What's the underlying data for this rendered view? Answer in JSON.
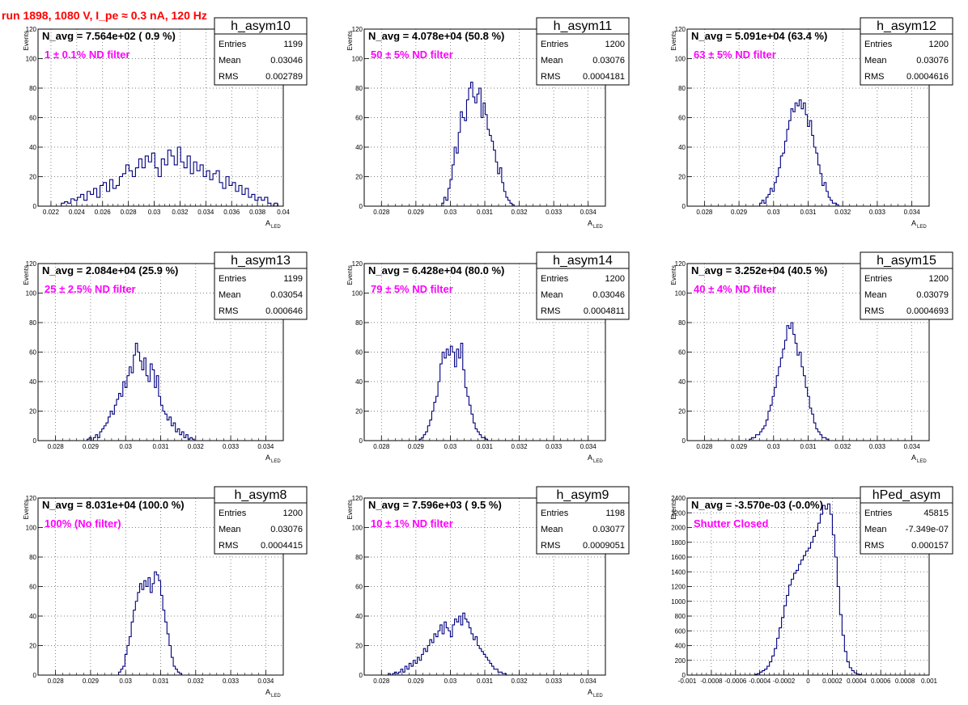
{
  "run_title": "run 1898,  1080 V, I_pe ≈ 0.3 nA, 120 Hz",
  "colors": {
    "hist": "#000080",
    "annotation": "#ff00ff",
    "title": "#ff0000",
    "grid": "#000000"
  },
  "chart_data": [
    {
      "type": "bar",
      "name": "h_asym10",
      "stats": {
        "Entries": "1199",
        "Mean": "0.03046",
        "RMS": "0.002789"
      },
      "navg": "N_avg = 7.564e+02 ( 0.9 %)",
      "filter": "1 ± 0.1% ND filter",
      "xlabel": "A",
      "xlabel_sub": "LED",
      "ylabel": "Events",
      "xlim": [
        0.021,
        0.04
      ],
      "ylim": [
        0,
        120
      ],
      "xticks": [
        0.022,
        0.024,
        0.026,
        0.028,
        0.03,
        0.032,
        0.034,
        0.036,
        0.038,
        0.04
      ],
      "xtick_labels": [
        "0.022",
        "0.024",
        "0.026",
        "0.028",
        "0.03",
        "0.032",
        "0.034",
        "0.036",
        "0.038",
        "0.04"
      ],
      "yticks": [
        0,
        20,
        40,
        60,
        80,
        100,
        120
      ],
      "ytick_labels": [
        "0",
        "20",
        "40",
        "60",
        "80",
        "100",
        "120"
      ],
      "bin_start": 0.0228,
      "bin_width": 0.00025,
      "values": [
        2,
        3,
        2,
        5,
        4,
        6,
        8,
        4,
        10,
        8,
        12,
        6,
        14,
        16,
        10,
        18,
        12,
        14,
        20,
        22,
        28,
        24,
        20,
        26,
        32,
        26,
        34,
        30,
        36,
        26,
        20,
        32,
        28,
        38,
        34,
        28,
        40,
        30,
        26,
        34,
        22,
        30,
        24,
        28,
        20,
        24,
        18,
        22,
        24,
        16,
        12,
        20,
        14,
        16,
        10,
        14,
        8,
        12,
        6,
        8,
        4,
        6,
        4,
        6,
        2,
        0,
        2
      ]
    },
    {
      "type": "bar",
      "name": "h_asym11",
      "stats": {
        "Entries": "1200",
        "Mean": "0.03076",
        "RMS": "0.0004181"
      },
      "navg": "N_avg = 4.078e+04 (50.8 %)",
      "filter": "50 ± 5% ND filter",
      "xlabel": "A",
      "xlabel_sub": "LED",
      "ylabel": "Events",
      "xlim": [
        0.0275,
        0.0345
      ],
      "ylim": [
        0,
        120
      ],
      "xticks": [
        0.028,
        0.029,
        0.03,
        0.031,
        0.032,
        0.033,
        0.034
      ],
      "xtick_labels": [
        "0.028",
        "0.029",
        "0.03",
        "0.031",
        "0.032",
        "0.033",
        "0.034"
      ],
      "yticks": [
        0,
        20,
        40,
        60,
        80,
        100,
        120
      ],
      "ytick_labels": [
        "0",
        "20",
        "40",
        "60",
        "80",
        "100",
        "120"
      ],
      "bin_start": 0.02975,
      "bin_width": 6e-05,
      "values": [
        2,
        6,
        4,
        12,
        18,
        28,
        40,
        36,
        50,
        64,
        60,
        58,
        72,
        80,
        84,
        74,
        70,
        76,
        80,
        60,
        70,
        62,
        52,
        48,
        44,
        38,
        30,
        22,
        26,
        16,
        10,
        6,
        4,
        2,
        1
      ]
    },
    {
      "type": "bar",
      "name": "h_asym12",
      "stats": {
        "Entries": "1200",
        "Mean": "0.03076",
        "RMS": "0.0004616"
      },
      "navg": "N_avg = 5.091e+04 (63.4 %)",
      "filter": "63 ± 5% ND filter",
      "xlabel": "A",
      "xlabel_sub": "LED",
      "ylabel": "Events",
      "xlim": [
        0.0275,
        0.0345
      ],
      "ylim": [
        0,
        120
      ],
      "xticks": [
        0.028,
        0.029,
        0.03,
        0.031,
        0.032,
        0.033,
        0.034
      ],
      "xtick_labels": [
        "0.028",
        "0.029",
        "0.03",
        "0.031",
        "0.032",
        "0.033",
        "0.034"
      ],
      "yticks": [
        0,
        20,
        40,
        60,
        80,
        100,
        120
      ],
      "ytick_labels": [
        "0",
        "20",
        "40",
        "60",
        "80",
        "100",
        "120"
      ],
      "bin_start": 0.0296,
      "bin_width": 6e-05,
      "values": [
        2,
        4,
        2,
        6,
        8,
        12,
        10,
        16,
        20,
        26,
        34,
        36,
        44,
        52,
        58,
        66,
        64,
        70,
        68,
        72,
        66,
        70,
        62,
        54,
        58,
        48,
        40,
        36,
        28,
        22,
        14,
        16,
        10,
        6,
        4,
        2,
        2,
        1
      ]
    },
    {
      "type": "bar",
      "name": "h_asym13",
      "stats": {
        "Entries": "1199",
        "Mean": "0.03054",
        "RMS": "0.000646"
      },
      "navg": "N_avg = 2.084e+04 (25.9 %)",
      "filter": "25 ± 2.5% ND filter",
      "xlabel": "A",
      "xlabel_sub": "LED",
      "ylabel": "Events",
      "xlim": [
        0.0275,
        0.0345
      ],
      "ylim": [
        0,
        120
      ],
      "xticks": [
        0.028,
        0.029,
        0.03,
        0.031,
        0.032,
        0.033,
        0.034
      ],
      "xtick_labels": [
        "0.028",
        "0.029",
        "0.03",
        "0.031",
        "0.032",
        "0.033",
        "0.034"
      ],
      "yticks": [
        0,
        20,
        40,
        60,
        80,
        100,
        120
      ],
      "ytick_labels": [
        "0",
        "20",
        "40",
        "60",
        "80",
        "100",
        "120"
      ],
      "bin_start": 0.0289,
      "bin_width": 6e-05,
      "values": [
        1,
        2,
        0,
        2,
        4,
        2,
        6,
        8,
        10,
        12,
        16,
        20,
        18,
        24,
        28,
        32,
        30,
        40,
        36,
        44,
        50,
        46,
        58,
        66,
        60,
        54,
        48,
        56,
        44,
        40,
        52,
        48,
        36,
        44,
        30,
        24,
        20,
        18,
        14,
        16,
        10,
        12,
        6,
        8,
        4,
        6,
        2,
        4,
        1,
        2,
        1
      ]
    },
    {
      "type": "bar",
      "name": "h_asym14",
      "stats": {
        "Entries": "1200",
        "Mean": "0.03046",
        "RMS": "0.0004811"
      },
      "navg": "N_avg = 6.428e+04 (80.0 %)",
      "filter": "79 ± 5% ND filter",
      "xlabel": "A",
      "xlabel_sub": "LED",
      "ylabel": "Events",
      "xlim": [
        0.0275,
        0.0345
      ],
      "ylim": [
        0,
        120
      ],
      "xticks": [
        0.028,
        0.029,
        0.03,
        0.031,
        0.032,
        0.033,
        0.034
      ],
      "xtick_labels": [
        "0.028",
        "0.029",
        "0.03",
        "0.031",
        "0.032",
        "0.033",
        "0.034"
      ],
      "yticks": [
        0,
        20,
        40,
        60,
        80,
        100,
        120
      ],
      "ytick_labels": [
        "0",
        "20",
        "40",
        "60",
        "80",
        "100",
        "120"
      ],
      "bin_start": 0.0291,
      "bin_width": 6e-05,
      "values": [
        1,
        2,
        4,
        6,
        10,
        14,
        20,
        26,
        30,
        40,
        52,
        60,
        56,
        62,
        58,
        64,
        60,
        50,
        62,
        56,
        66,
        48,
        36,
        30,
        24,
        18,
        12,
        8,
        6,
        4,
        2,
        2,
        1
      ]
    },
    {
      "type": "bar",
      "name": "h_asym15",
      "stats": {
        "Entries": "1200",
        "Mean": "0.03079",
        "RMS": "0.0004693"
      },
      "navg": "N_avg = 3.252e+04 (40.5 %)",
      "filter": "40 ± 4% ND filter",
      "xlabel": "A",
      "xlabel_sub": "LED",
      "ylabel": "Events",
      "xlim": [
        0.0275,
        0.0345
      ],
      "ylim": [
        0,
        120
      ],
      "xticks": [
        0.028,
        0.029,
        0.03,
        0.031,
        0.032,
        0.033,
        0.034
      ],
      "xtick_labels": [
        "0.028",
        "0.029",
        "0.03",
        "0.031",
        "0.032",
        "0.033",
        "0.034"
      ],
      "yticks": [
        0,
        20,
        40,
        60,
        80,
        100,
        120
      ],
      "ytick_labels": [
        "0",
        "20",
        "40",
        "60",
        "80",
        "100",
        "120"
      ],
      "bin_start": 0.0293,
      "bin_width": 6e-05,
      "values": [
        1,
        2,
        2,
        4,
        4,
        6,
        8,
        10,
        14,
        20,
        24,
        30,
        36,
        44,
        50,
        56,
        62,
        68,
        78,
        76,
        80,
        72,
        66,
        58,
        60,
        50,
        44,
        36,
        30,
        22,
        18,
        12,
        8,
        6,
        4,
        2,
        2,
        1
      ]
    },
    {
      "type": "bar",
      "name": "h_asym8",
      "stats": {
        "Entries": "1200",
        "Mean": "0.03076",
        "RMS": "0.0004415"
      },
      "navg": "N_avg = 8.031e+04 (100.0 %)",
      "filter": "100% (No filter)",
      "xlabel": "A",
      "xlabel_sub": "LED",
      "ylabel": "Events",
      "xlim": [
        0.0275,
        0.0345
      ],
      "ylim": [
        0,
        120
      ],
      "xticks": [
        0.028,
        0.029,
        0.03,
        0.031,
        0.032,
        0.033,
        0.034
      ],
      "xtick_labels": [
        "0.028",
        "0.029",
        "0.03",
        "0.031",
        "0.032",
        "0.033",
        "0.034"
      ],
      "yticks": [
        0,
        20,
        40,
        60,
        80,
        100,
        120
      ],
      "ytick_labels": [
        "0",
        "20",
        "40",
        "60",
        "80",
        "100",
        "120"
      ],
      "bin_start": 0.0298,
      "bin_width": 6e-05,
      "values": [
        2,
        4,
        6,
        14,
        20,
        26,
        36,
        44,
        50,
        56,
        62,
        58,
        64,
        60,
        66,
        56,
        62,
        70,
        68,
        64,
        54,
        44,
        36,
        28,
        20,
        12,
        6,
        4,
        2,
        1
      ]
    },
    {
      "type": "bar",
      "name": "h_asym9",
      "stats": {
        "Entries": "1198",
        "Mean": "0.03077",
        "RMS": "0.0009051"
      },
      "navg": "N_avg = 7.596e+03 ( 9.5 %)",
      "filter": "10 ± 1% ND filter",
      "xlabel": "A",
      "xlabel_sub": "LED",
      "ylabel": "Events",
      "xlim": [
        0.0275,
        0.0345
      ],
      "ylim": [
        0,
        120
      ],
      "xticks": [
        0.028,
        0.029,
        0.03,
        0.031,
        0.032,
        0.033,
        0.034
      ],
      "xtick_labels": [
        "0.028",
        "0.029",
        "0.03",
        "0.031",
        "0.032",
        "0.033",
        "0.034"
      ],
      "yticks": [
        0,
        20,
        40,
        60,
        80,
        100,
        120
      ],
      "ytick_labels": [
        "0",
        "20",
        "40",
        "60",
        "80",
        "100",
        "120"
      ],
      "bin_start": 0.0282,
      "bin_width": 6e-05,
      "values": [
        1,
        0,
        1,
        2,
        1,
        2,
        4,
        2,
        6,
        4,
        8,
        6,
        10,
        8,
        12,
        10,
        14,
        18,
        16,
        20,
        24,
        22,
        28,
        26,
        30,
        34,
        28,
        36,
        32,
        30,
        26,
        34,
        38,
        36,
        40,
        34,
        42,
        38,
        36,
        32,
        28,
        24,
        26,
        20,
        18,
        16,
        14,
        12,
        10,
        8,
        6,
        4,
        4,
        2,
        2,
        1,
        1
      ]
    },
    {
      "type": "bar",
      "name": "hPed_asym",
      "stats": {
        "Entries": "45815",
        "Mean": "-7.349e-07",
        "RMS": "0.000157"
      },
      "navg": "N_avg = -3.570e-03 (-0.0%)",
      "filter": "Shutter Closed",
      "xlabel": "",
      "xlabel_sub": "",
      "ylabel": "Events",
      "xlim": [
        -0.001,
        0.001
      ],
      "ylim": [
        0,
        2400
      ],
      "xticks": [
        -0.001,
        -0.0008,
        -0.0006,
        -0.0004,
        -0.0002,
        0,
        0.0002,
        0.0004,
        0.0006,
        0.0008,
        0.001
      ],
      "xtick_labels": [
        "-0.001",
        "-0.0008",
        "-0.0006",
        "-0.0004",
        "-0.0002",
        "0",
        "0.0002",
        "0.0004",
        "0.0006",
        "0.0008",
        "0.001"
      ],
      "yticks": [
        0,
        200,
        400,
        600,
        800,
        1000,
        1200,
        1400,
        1600,
        1800,
        2000,
        2200,
        2400
      ],
      "ytick_labels": [
        "0",
        "200",
        "400",
        "600",
        "800",
        "1000",
        "1200",
        "1400",
        "1600",
        "1800",
        "2000",
        "2200",
        "2400"
      ],
      "bin_start": -0.00044,
      "bin_width": 2e-05,
      "values": [
        10,
        20,
        40,
        60,
        80,
        120,
        180,
        260,
        360,
        500,
        640,
        780,
        940,
        1080,
        1220,
        1300,
        1380,
        1420,
        1500,
        1560,
        1620,
        1680,
        1720,
        1800,
        1880,
        1960,
        2060,
        2180,
        2300,
        2250,
        2320,
        2180,
        1900,
        1600,
        1200,
        820,
        540,
        320,
        180,
        100,
        60,
        30,
        15,
        8
      ]
    }
  ]
}
